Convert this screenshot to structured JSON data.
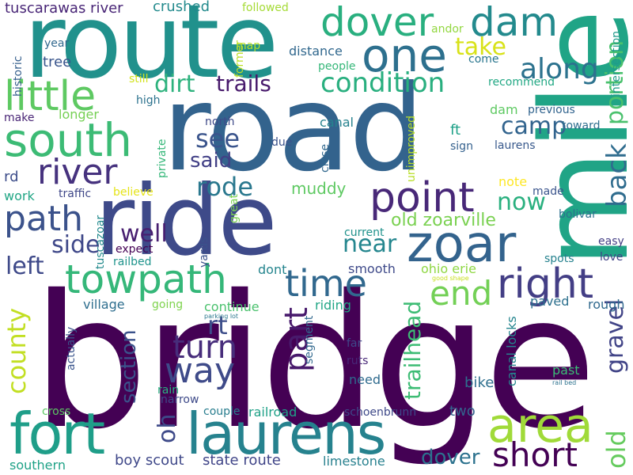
{
  "words": [
    {
      "text": "bridge",
      "color": "#440154"
    },
    {
      "text": "road",
      "color": "#33638d"
    },
    {
      "text": "route",
      "color": "#21918c"
    },
    {
      "text": "mile",
      "color": "#20a486"
    },
    {
      "text": "ride",
      "color": "#3e4a89"
    },
    {
      "text": "fort",
      "color": "#1f9e89"
    },
    {
      "text": "laurens",
      "color": "#26828e"
    },
    {
      "text": "dover",
      "color": "#29af7f"
    },
    {
      "text": "dam",
      "color": "#238a8d"
    },
    {
      "text": "one",
      "color": "#2d708e"
    },
    {
      "text": "south",
      "color": "#3cbb75"
    },
    {
      "text": "little",
      "color": "#5ec962"
    },
    {
      "text": "towpath",
      "color": "#35b779"
    },
    {
      "text": "zoar",
      "color": "#33638d"
    },
    {
      "text": "point",
      "color": "#482878"
    },
    {
      "text": "right",
      "color": "#433e85"
    },
    {
      "text": "area",
      "color": "#a0da39"
    },
    {
      "text": "river",
      "color": "#46327e"
    },
    {
      "text": "path",
      "color": "#3b528b"
    },
    {
      "text": "time",
      "color": "#31688e"
    },
    {
      "text": "way",
      "color": "#3e4a89"
    },
    {
      "text": "turn",
      "color": "#472d7b"
    },
    {
      "text": "short",
      "color": "#440154"
    },
    {
      "text": "condition",
      "color": "#29af7f"
    },
    {
      "text": "take",
      "color": "#d8e219"
    },
    {
      "text": "along",
      "color": "#2c728e"
    },
    {
      "text": "dirt",
      "color": "#2db27d"
    },
    {
      "text": "trails",
      "color": "#481a6c"
    },
    {
      "text": "camp",
      "color": "#32648e"
    },
    {
      "text": "see",
      "color": "#3a548c"
    },
    {
      "text": "said",
      "color": "#424086"
    },
    {
      "text": "rode",
      "color": "#2a788e"
    },
    {
      "text": "portion",
      "color": "#4ac16d"
    },
    {
      "text": "back",
      "color": "#2f6c8e"
    },
    {
      "text": "end",
      "color": "#73d056"
    },
    {
      "text": "part",
      "color": "#481a6c"
    },
    {
      "text": "now",
      "color": "#2ab07f"
    },
    {
      "text": "near",
      "color": "#24868e"
    },
    {
      "text": "well",
      "color": "#481f70"
    },
    {
      "text": "side",
      "color": "#3f4889"
    },
    {
      "text": "left",
      "color": "#3e4989"
    },
    {
      "text": "county",
      "color": "#c2df23"
    },
    {
      "text": "rt",
      "color": "#3d4e8a"
    },
    {
      "text": "oh",
      "color": "#3e4a89"
    },
    {
      "text": "section",
      "color": "#3b528b"
    },
    {
      "text": "trailhead",
      "color": "#3dbc74"
    },
    {
      "text": "gravel",
      "color": "#414487"
    },
    {
      "text": "old",
      "color": "#65cb5e"
    },
    {
      "text": "old zoarville",
      "color": "#7ad151"
    },
    {
      "text": "muddy",
      "color": "#5ec962"
    },
    {
      "text": "tuscarawas river",
      "color": "#482576"
    },
    {
      "text": "crushed",
      "color": "#238a8d"
    },
    {
      "text": "followed",
      "color": "#a5db36"
    },
    {
      "text": "year",
      "color": "#31688e"
    },
    {
      "text": "tree",
      "color": "#39558c"
    },
    {
      "text": "historic",
      "color": "#355f8d"
    },
    {
      "text": "still",
      "color": "#d2e21b"
    },
    {
      "text": "high",
      "color": "#2c728e"
    },
    {
      "text": "longer",
      "color": "#75d054"
    },
    {
      "text": "make",
      "color": "#482475"
    },
    {
      "text": "map",
      "color": "#b5de2b"
    },
    {
      "text": "former",
      "color": "#bddf26"
    },
    {
      "text": "distance",
      "color": "#31688e"
    },
    {
      "text": "people",
      "color": "#35b779"
    },
    {
      "text": "andor",
      "color": "#93d741"
    },
    {
      "text": "come",
      "color": "#2a768e"
    },
    {
      "text": "intersection",
      "color": "#1f9a8a"
    },
    {
      "text": "recommend",
      "color": "#22a884"
    },
    {
      "text": "dam",
      "color": "#5ec962"
    },
    {
      "text": "previous",
      "color": "#32648e"
    },
    {
      "text": "canal",
      "color": "#26828e"
    },
    {
      "text": "ft",
      "color": "#1fa188"
    },
    {
      "text": "sign",
      "color": "#34618d"
    },
    {
      "text": "toward",
      "color": "#2e6e8e"
    },
    {
      "text": "laurens",
      "color": "#38598c"
    },
    {
      "text": "north",
      "color": "#3e4a89"
    },
    {
      "text": "due",
      "color": "#3b528b"
    },
    {
      "text": "close",
      "color": "#31688e"
    },
    {
      "text": "unimproved",
      "color": "#b8de29"
    },
    {
      "text": "private",
      "color": "#35b779"
    },
    {
      "text": "rd",
      "color": "#3d4d8a"
    },
    {
      "text": "work",
      "color": "#21a685"
    },
    {
      "text": "traffic",
      "color": "#3f4788"
    },
    {
      "text": "believe",
      "color": "#e5e419"
    },
    {
      "text": "note",
      "color": "#fde725"
    },
    {
      "text": "made",
      "color": "#3a548c"
    },
    {
      "text": "bolivar",
      "color": "#2d708e"
    },
    {
      "text": "easy",
      "color": "#433e85"
    },
    {
      "text": "spots",
      "color": "#26828e"
    },
    {
      "text": "love",
      "color": "#414487"
    },
    {
      "text": "yards",
      "color": "#3b528b"
    },
    {
      "text": "great",
      "color": "#7ad151"
    },
    {
      "text": "current",
      "color": "#20928c"
    },
    {
      "text": "tuscazoar",
      "color": "#238a8d"
    },
    {
      "text": "expect",
      "color": "#440154"
    },
    {
      "text": "railbed",
      "color": "#1f948c"
    },
    {
      "text": "dont",
      "color": "#25858e"
    },
    {
      "text": "smooth",
      "color": "#3e4989"
    },
    {
      "text": "ohio erie",
      "color": "#8fd744"
    },
    {
      "text": "good shape",
      "color": "#c8e020"
    },
    {
      "text": "village",
      "color": "#2e6e8e"
    },
    {
      "text": "going",
      "color": "#7fd34e"
    },
    {
      "text": "riding",
      "color": "#21a685"
    },
    {
      "text": "paved",
      "color": "#2d708e"
    },
    {
      "text": "rough",
      "color": "#30698e"
    },
    {
      "text": "continue",
      "color": "#4ac16d"
    },
    {
      "text": "parking lot",
      "color": "#2a778e"
    },
    {
      "text": "segment",
      "color": "#31688e"
    },
    {
      "text": "canal locks",
      "color": "#25858e"
    },
    {
      "text": "far",
      "color": "#3f4889"
    },
    {
      "text": "ruts",
      "color": "#482878"
    },
    {
      "text": "past",
      "color": "#3bbb75"
    },
    {
      "text": "rail bed",
      "color": "#2c728e"
    },
    {
      "text": "actually",
      "color": "#3a548c"
    },
    {
      "text": "rain",
      "color": "#2ab07f"
    },
    {
      "text": "need",
      "color": "#2f6b8e"
    },
    {
      "text": "bike",
      "color": "#2e6f8e"
    },
    {
      "text": "narrow",
      "color": "#3e4a89"
    },
    {
      "text": "cross",
      "color": "#5cc863"
    },
    {
      "text": "couple",
      "color": "#287d8e"
    },
    {
      "text": "railroad",
      "color": "#1fa187"
    },
    {
      "text": "schoenbrunn",
      "color": "#3e4989"
    },
    {
      "text": "two",
      "color": "#33638d"
    },
    {
      "text": "southern",
      "color": "#1fa287"
    },
    {
      "text": "boy scout",
      "color": "#3f4889"
    },
    {
      "text": "state route",
      "color": "#404588"
    },
    {
      "text": "limestone",
      "color": "#27808e"
    },
    {
      "text": "dover",
      "color": "#2c728e"
    }
  ]
}
